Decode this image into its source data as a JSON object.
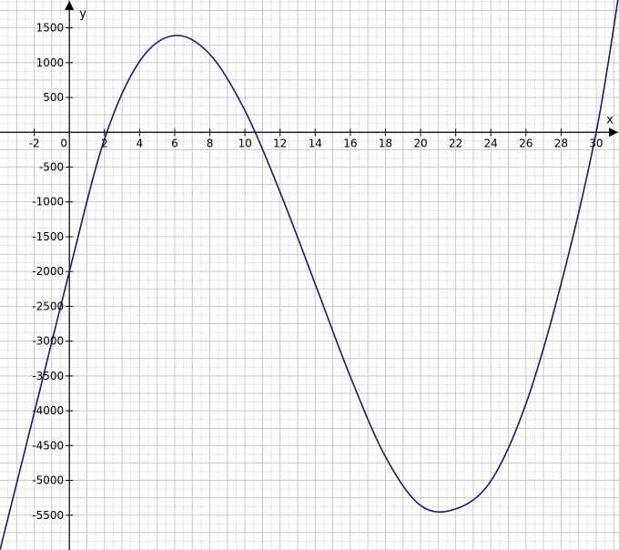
{
  "chart_data": {
    "type": "line",
    "title": "",
    "xlabel": "x",
    "ylabel": "y",
    "xlim": [
      -3.95,
      31.3
    ],
    "ylim": [
      -6000,
      1900
    ],
    "x_ticks": [
      -2,
      0,
      2,
      4,
      6,
      8,
      10,
      12,
      14,
      16,
      18,
      20,
      22,
      24,
      26,
      28,
      30
    ],
    "x_tick_labels": [
      "-2",
      "0",
      "2",
      "4",
      "6",
      "8",
      "10",
      "12",
      "14",
      "16",
      "18",
      "20",
      "22",
      "24",
      "26",
      "28",
      "30"
    ],
    "y_ticks": [
      1500,
      1000,
      500,
      -500,
      -1000,
      -1500,
      -2000,
      -2500,
      -3000,
      -3500,
      -4000,
      -4500,
      -5000,
      -5500
    ],
    "y_tick_labels": [
      "1500",
      "1000",
      "500",
      "-500",
      "-1000",
      "-1500",
      "-2000",
      "-2500",
      "-3000",
      "-3500",
      "-4000",
      "-4500",
      "-5000",
      "-5500"
    ],
    "grid": true,
    "minor_grid": true,
    "colors": {
      "curve": "#1a1a6e",
      "grid_major": "#c8c8c8",
      "grid_minor": "#e8e8e8",
      "axes": "#000000"
    },
    "series": [
      {
        "curve": "cubic",
        "x": [
          -3.95,
          -2,
          0,
          2,
          4,
          6,
          8,
          10,
          12,
          14,
          16,
          18,
          20,
          22,
          24,
          26,
          28,
          30,
          31.3
        ],
        "values": [
          -6000,
          -4030,
          -2000,
          -100,
          1020,
          1390,
          1120,
          310,
          -860,
          -2180,
          -3510,
          -4660,
          -5360,
          -5410,
          -5010,
          -3900,
          -2180,
          0,
          2000
        ]
      }
    ]
  }
}
